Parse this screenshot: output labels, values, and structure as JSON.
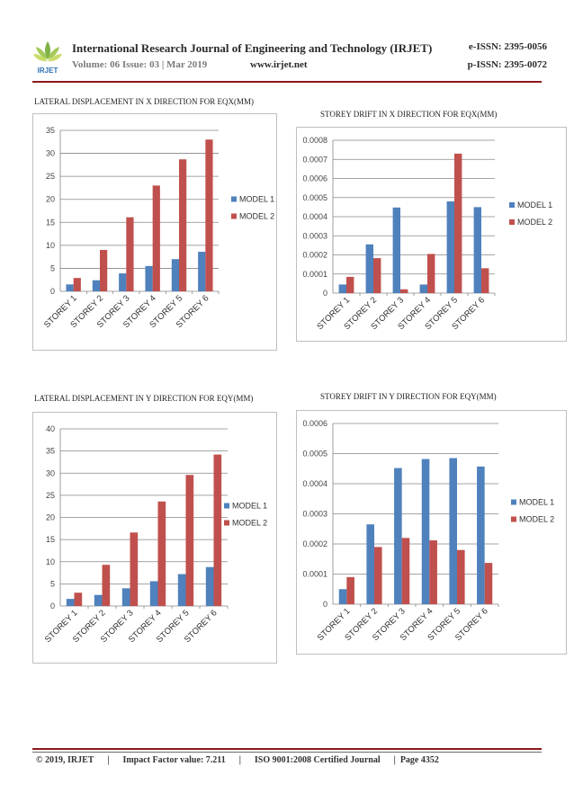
{
  "header": {
    "logo_text": "IRJET",
    "journal_title": "International Research Journal of Engineering and Technology (IRJET)",
    "e_issn": "e-ISSN: 2395-0056",
    "volume": "Volume: 06 Issue: 03 | Mar 2019",
    "website": "www.irjet.net",
    "p_issn": "p-ISSN: 2395-0072"
  },
  "colors": {
    "model1": "#4f81bd",
    "model2": "#c0504d",
    "gridline": "#868686",
    "rule": "#8b1a1a"
  },
  "chart_data": [
    {
      "type": "bar",
      "title": "LATERAL DISPLACEMENT IN X DIRECTION FOR EQX(MM)",
      "categories": [
        "STOREY 1",
        "STOREY 2",
        "STOREY 3",
        "STOREY 4",
        "STOREY 5",
        "STOREY 6"
      ],
      "series": [
        {
          "name": "MODEL 1",
          "values": [
            1.5,
            2.4,
            3.9,
            5.5,
            7.0,
            8.6
          ]
        },
        {
          "name": "MODEL 2",
          "values": [
            2.9,
            9.0,
            16.1,
            23.0,
            28.7,
            33.0
          ]
        }
      ],
      "ylim": [
        0,
        35
      ],
      "yticks": [
        "0",
        "5",
        "10",
        "15",
        "20",
        "25",
        "30",
        "35"
      ],
      "grid": true,
      "legend": "right"
    },
    {
      "type": "bar",
      "title": "STOREY DRIFT IN X DIRECTION FOR EQX(MM)",
      "categories": [
        "STOREY 1",
        "STOREY 2",
        "STOREY 3",
        "STOREY 4",
        "STOREY 5",
        "STOREY 6"
      ],
      "series": [
        {
          "name": "MODEL 1",
          "values": [
            4.5e-05,
            0.000255,
            0.000448,
            4.5e-05,
            0.00048,
            0.00045
          ]
        },
        {
          "name": "MODEL 2",
          "values": [
            8.5e-05,
            0.000183,
            2e-05,
            0.000205,
            0.00073,
            0.00013
          ]
        }
      ],
      "ylim": [
        0,
        0.0008
      ],
      "yticks": [
        "0",
        "0.0001",
        "0.0002",
        "0.0003",
        "0.0004",
        "0.0005",
        "0.0006",
        "0.0007",
        "0.0008"
      ],
      "grid": true,
      "legend": "right"
    },
    {
      "type": "bar",
      "title": "LATERAL DISPLACEMENT IN Y DIRECTION FOR EQY(MM)",
      "categories": [
        "STOREY 1",
        "STOREY 2",
        "STOREY 3",
        "STOREY 4",
        "STOREY 5",
        "STOREY 6"
      ],
      "series": [
        {
          "name": "MODEL 1",
          "values": [
            1.6,
            2.5,
            4.0,
            5.6,
            7.2,
            8.8
          ]
        },
        {
          "name": "MODEL 2",
          "values": [
            3.0,
            9.3,
            16.6,
            23.6,
            29.6,
            34.2
          ]
        }
      ],
      "ylim": [
        0,
        40
      ],
      "yticks": [
        "0",
        "5",
        "10",
        "15",
        "20",
        "25",
        "30",
        "35",
        "40"
      ],
      "grid": true,
      "legend": "right"
    },
    {
      "type": "bar",
      "title": "STOREY DRIFT IN Y DIRECTION FOR EQY(MM)",
      "categories": [
        "STOREY 1",
        "STOREY 2",
        "STOREY 3",
        "STOREY 4",
        "STOREY 5",
        "STOREY 6"
      ],
      "series": [
        {
          "name": "MODEL 1",
          "values": [
            5e-05,
            0.000265,
            0.000452,
            0.000482,
            0.000485,
            0.000457
          ]
        },
        {
          "name": "MODEL 2",
          "values": [
            9e-05,
            0.00019,
            0.00022,
            0.000212,
            0.00018,
            0.000137
          ]
        }
      ],
      "ylim": [
        0,
        0.0006
      ],
      "yticks": [
        "0",
        "0.0001",
        "0.0002",
        "0.0003",
        "0.0004",
        "0.0005",
        "0.0006"
      ],
      "grid": true,
      "legend": "right"
    }
  ],
  "footer": {
    "copyright": "© 2019, IRJET",
    "impact": "Impact Factor value: 7.211",
    "iso": "ISO 9001:2008 Certified Journal",
    "page": "Page 4352",
    "separator": "|"
  }
}
